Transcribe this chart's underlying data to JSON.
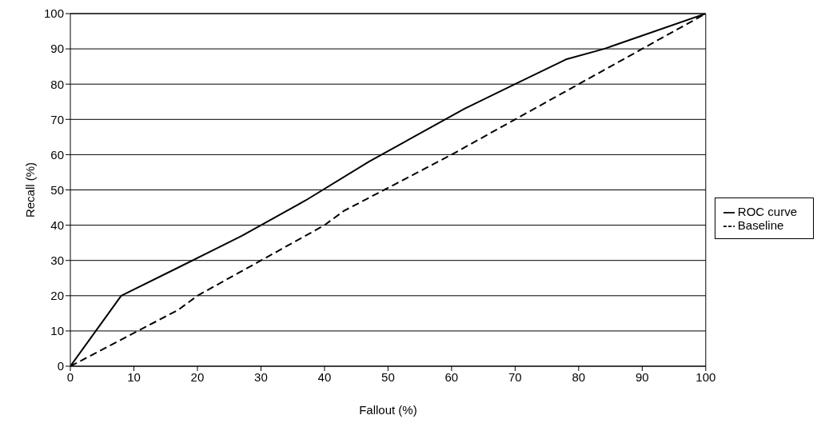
{
  "chart_data": {
    "type": "line",
    "xlabel": "Fallout (%)",
    "ylabel": "Recall (%)",
    "xlim": [
      0,
      100
    ],
    "xticks": [
      0,
      10,
      20,
      30,
      40,
      50,
      60,
      70,
      80,
      90,
      100
    ],
    "ylim": [
      0,
      100
    ],
    "yticks": [
      0,
      10,
      20,
      30,
      40,
      50,
      60,
      70,
      80,
      90,
      100
    ],
    "grid": "y",
    "legend": "right",
    "marker": "none",
    "series": [
      {
        "name": "ROC curve",
        "color": "#000000",
        "line_style": "solid",
        "x": [
          0,
          8,
          17,
          27,
          37,
          47,
          57,
          62,
          70,
          78,
          84,
          100
        ],
        "values": [
          0,
          20,
          28,
          37,
          47,
          58,
          68,
          73,
          80,
          87,
          90,
          100
        ]
      },
      {
        "name": "Baseline",
        "color": "#000000",
        "line_style": "dashed",
        "x": [
          0,
          17,
          20,
          40,
          43,
          60,
          80,
          100
        ],
        "values": [
          0,
          16,
          20,
          40,
          44,
          60,
          80,
          100
        ]
      }
    ]
  }
}
